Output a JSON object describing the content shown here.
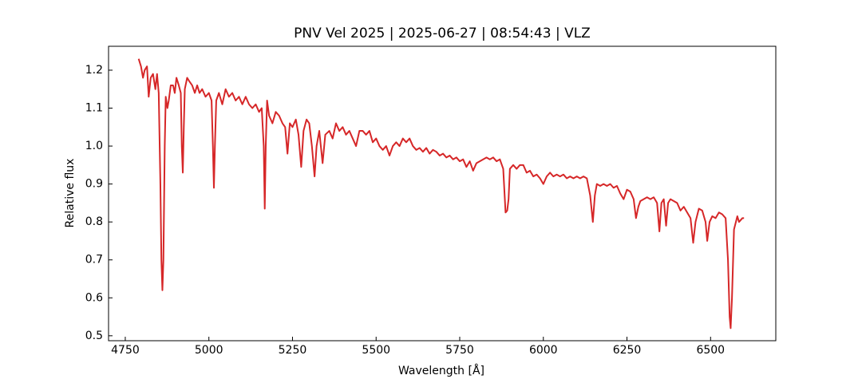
{
  "chart_data": {
    "type": "line",
    "title": "PNV Vel 2025 | 2025-06-27 | 08:54:43 | VLZ",
    "x_label": "Wavelength [Å]",
    "y_label": "Relative flux",
    "color": "#d62728",
    "xlim": [
      4700,
      6695
    ],
    "ylim": [
      0.487,
      1.263
    ],
    "xticks": [
      4750,
      5000,
      5250,
      5500,
      5750,
      6000,
      6250,
      6500
    ],
    "yticks": [
      {
        "value": 0.5,
        "label": "0.5"
      },
      {
        "value": 0.6,
        "label": "0.6"
      },
      {
        "value": 0.7,
        "label": "0.7"
      },
      {
        "value": 0.8,
        "label": "0.8"
      },
      {
        "value": 0.9,
        "label": "0.9"
      },
      {
        "value": 1.0,
        "label": "1.0"
      },
      {
        "value": 1.1,
        "label": "1.1"
      },
      {
        "value": 1.2,
        "label": "1.2"
      }
    ],
    "grid": false,
    "x": [
      4790,
      4797,
      4803,
      4808,
      4815,
      4820,
      4826,
      4833,
      4840,
      4845,
      4850,
      4855,
      4858,
      4861,
      4864,
      4868,
      4871,
      4876,
      4880,
      4886,
      4893,
      4898,
      4903,
      4910,
      4916,
      4919,
      4922,
      4925,
      4928,
      4935,
      4942,
      4950,
      4958,
      4965,
      4972,
      4980,
      4990,
      5000,
      5008,
      5012,
      5015,
      5018,
      5022,
      5030,
      5040,
      5050,
      5060,
      5070,
      5080,
      5090,
      5100,
      5110,
      5120,
      5130,
      5140,
      5150,
      5158,
      5164,
      5167,
      5170,
      5174,
      5180,
      5190,
      5200,
      5210,
      5220,
      5228,
      5235,
      5242,
      5250,
      5260,
      5268,
      5276,
      5283,
      5292,
      5300,
      5308,
      5316,
      5322,
      5330,
      5340,
      5348,
      5360,
      5370,
      5380,
      5390,
      5400,
      5410,
      5420,
      5430,
      5440,
      5450,
      5460,
      5470,
      5480,
      5490,
      5500,
      5510,
      5520,
      5530,
      5540,
      5550,
      5560,
      5570,
      5580,
      5590,
      5600,
      5610,
      5620,
      5630,
      5640,
      5650,
      5660,
      5670,
      5680,
      5690,
      5700,
      5710,
      5720,
      5730,
      5740,
      5750,
      5760,
      5770,
      5780,
      5790,
      5800,
      5810,
      5820,
      5830,
      5840,
      5850,
      5860,
      5870,
      5880,
      5887,
      5892,
      5896,
      5900,
      5910,
      5920,
      5930,
      5940,
      5950,
      5960,
      5970,
      5980,
      5990,
      6000,
      6010,
      6020,
      6030,
      6040,
      6050,
      6060,
      6070,
      6080,
      6090,
      6100,
      6110,
      6120,
      6130,
      6140,
      6148,
      6154,
      6160,
      6170,
      6180,
      6190,
      6200,
      6210,
      6220,
      6230,
      6240,
      6250,
      6260,
      6270,
      6277,
      6284,
      6290,
      6300,
      6310,
      6320,
      6330,
      6340,
      6347,
      6353,
      6360,
      6367,
      6373,
      6380,
      6390,
      6400,
      6410,
      6420,
      6430,
      6440,
      6448,
      6455,
      6465,
      6475,
      6485,
      6490,
      6497,
      6505,
      6515,
      6525,
      6535,
      6545,
      6552,
      6557,
      6560,
      6564,
      6570,
      6580,
      6585,
      6590,
      6595,
      6600
    ],
    "values": [
      1.23,
      1.21,
      1.18,
      1.2,
      1.21,
      1.13,
      1.18,
      1.19,
      1.15,
      1.19,
      1.14,
      0.9,
      0.7,
      0.62,
      0.7,
      1.0,
      1.13,
      1.1,
      1.12,
      1.16,
      1.16,
      1.14,
      1.18,
      1.16,
      1.14,
      1.0,
      0.93,
      1.05,
      1.15,
      1.18,
      1.17,
      1.16,
      1.14,
      1.16,
      1.14,
      1.15,
      1.13,
      1.14,
      1.12,
      1.0,
      0.89,
      1.0,
      1.12,
      1.14,
      1.11,
      1.15,
      1.13,
      1.14,
      1.12,
      1.13,
      1.11,
      1.13,
      1.11,
      1.1,
      1.11,
      1.09,
      1.1,
      1.0,
      0.835,
      1.0,
      1.12,
      1.08,
      1.06,
      1.09,
      1.08,
      1.06,
      1.05,
      0.98,
      1.06,
      1.05,
      1.07,
      1.03,
      0.945,
      1.04,
      1.07,
      1.06,
      1.0,
      0.92,
      1.0,
      1.04,
      0.955,
      1.03,
      1.04,
      1.02,
      1.06,
      1.04,
      1.05,
      1.03,
      1.04,
      1.02,
      1.0,
      1.04,
      1.04,
      1.03,
      1.04,
      1.01,
      1.02,
      1.0,
      0.99,
      1.0,
      0.975,
      1.0,
      1.01,
      1.0,
      1.02,
      1.01,
      1.02,
      1.0,
      0.99,
      0.995,
      0.985,
      0.995,
      0.98,
      0.99,
      0.985,
      0.975,
      0.98,
      0.97,
      0.975,
      0.965,
      0.97,
      0.96,
      0.965,
      0.945,
      0.96,
      0.935,
      0.955,
      0.96,
      0.965,
      0.97,
      0.965,
      0.97,
      0.96,
      0.965,
      0.94,
      0.825,
      0.83,
      0.86,
      0.94,
      0.95,
      0.94,
      0.95,
      0.95,
      0.93,
      0.935,
      0.92,
      0.925,
      0.915,
      0.9,
      0.92,
      0.93,
      0.92,
      0.925,
      0.92,
      0.925,
      0.915,
      0.92,
      0.915,
      0.92,
      0.915,
      0.92,
      0.915,
      0.87,
      0.8,
      0.87,
      0.9,
      0.895,
      0.9,
      0.895,
      0.9,
      0.89,
      0.895,
      0.875,
      0.86,
      0.885,
      0.88,
      0.86,
      0.81,
      0.84,
      0.855,
      0.86,
      0.865,
      0.86,
      0.865,
      0.85,
      0.775,
      0.85,
      0.86,
      0.79,
      0.85,
      0.86,
      0.855,
      0.85,
      0.83,
      0.84,
      0.825,
      0.81,
      0.745,
      0.8,
      0.835,
      0.83,
      0.8,
      0.75,
      0.8,
      0.815,
      0.81,
      0.825,
      0.82,
      0.81,
      0.7,
      0.55,
      0.52,
      0.6,
      0.78,
      0.815,
      0.8,
      0.805,
      0.81,
      0.81
    ]
  }
}
